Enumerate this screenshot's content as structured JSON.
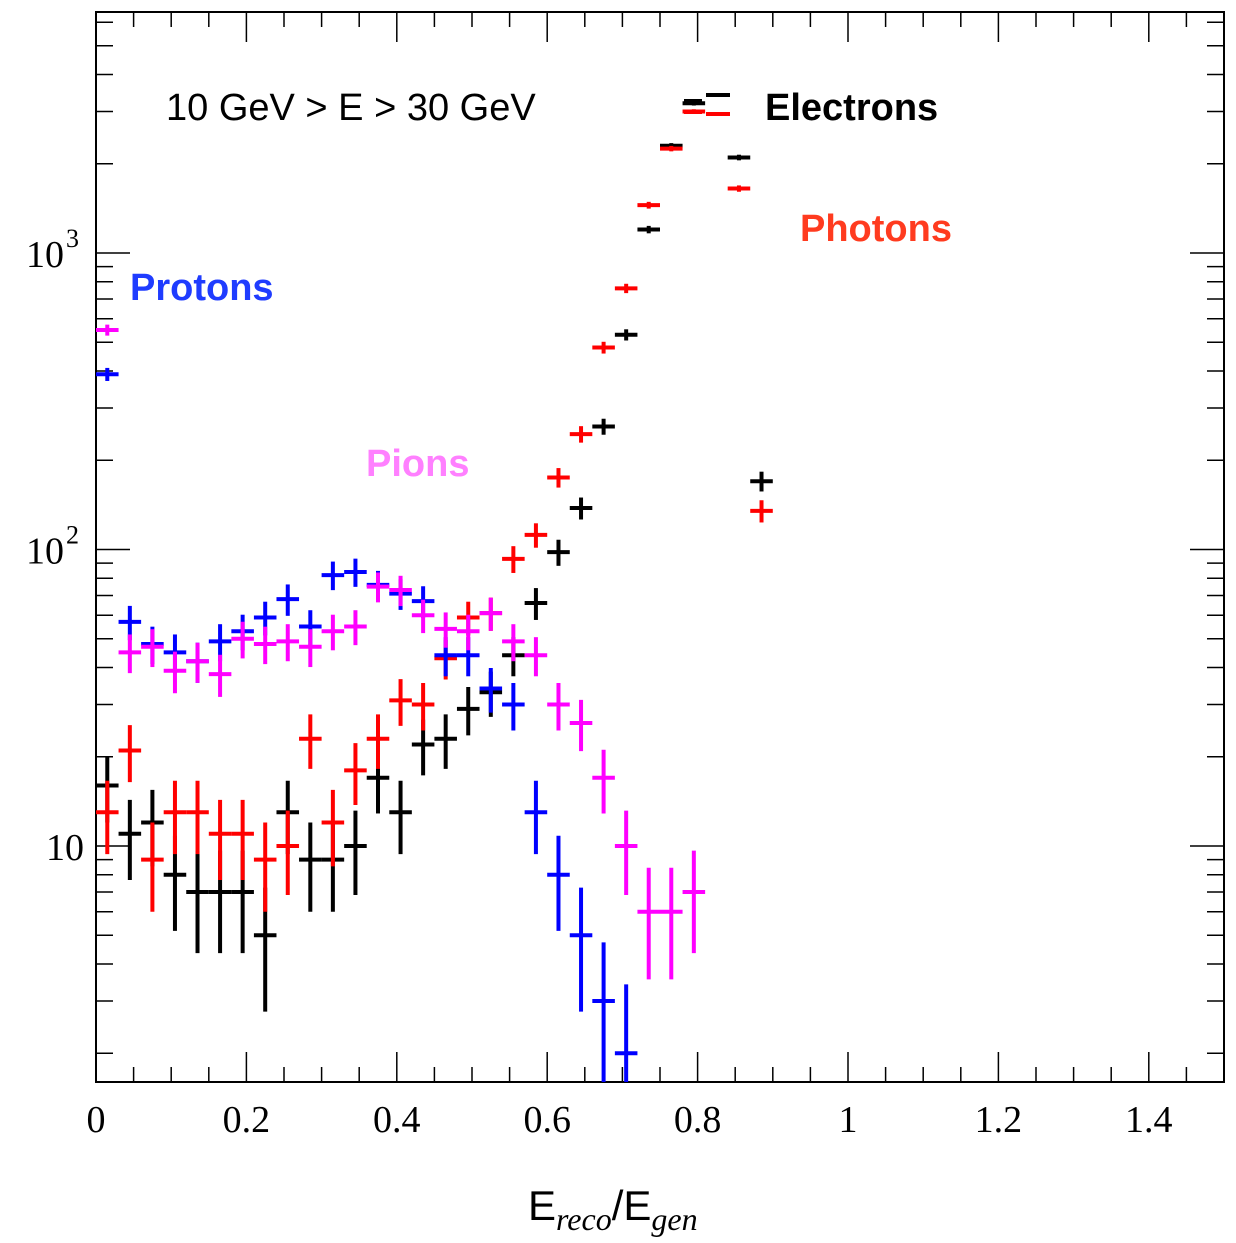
{
  "chart_data": {
    "type": "scatter",
    "log_y": true,
    "xlim": [
      0,
      1.5
    ],
    "ylim": [
      1.6,
      6500
    ],
    "x_ticks": [
      0,
      0.2,
      0.4,
      0.6,
      0.8,
      1,
      1.2,
      1.4
    ],
    "x_tick_labels": [
      "0",
      "0.2",
      "0.4",
      "0.6",
      "0.8",
      "1",
      "1.2",
      "1.4"
    ],
    "y_ticks": [
      10,
      100,
      1000
    ],
    "y_tick_labels": [
      "10",
      "10",
      "10"
    ],
    "y_tick_exponents": [
      "",
      "2",
      "3"
    ],
    "xlabel": {
      "base1": "E",
      "sub1": "reco",
      "sep": "/E",
      "sub2": "gen"
    },
    "ylabel": "",
    "grid": false,
    "annotation": "10 GeV > E > 30 GeV",
    "series": [
      {
        "name": "Electrons",
        "color": "#000000",
        "x": [
          0.015,
          0.045,
          0.075,
          0.105,
          0.135,
          0.165,
          0.195,
          0.225,
          0.255,
          0.285,
          0.315,
          0.345,
          0.375,
          0.405,
          0.435,
          0.465,
          0.495,
          0.525,
          0.555,
          0.585,
          0.615,
          0.645,
          0.675,
          0.705,
          0.735,
          0.765,
          0.795,
          0.855,
          0.885
        ],
        "y": [
          16,
          11,
          12,
          8,
          7,
          7,
          7,
          5,
          13,
          9,
          9,
          10,
          17,
          13,
          22,
          23,
          29,
          33,
          44,
          66,
          98,
          138,
          260,
          530,
          1200,
          2300,
          3200,
          2100,
          170
        ]
      },
      {
        "name": "Photons",
        "color": "#ff0000",
        "x": [
          0.015,
          0.045,
          0.075,
          0.105,
          0.135,
          0.165,
          0.195,
          0.225,
          0.255,
          0.285,
          0.315,
          0.345,
          0.375,
          0.405,
          0.435,
          0.465,
          0.495,
          0.525,
          0.555,
          0.585,
          0.615,
          0.645,
          0.675,
          0.705,
          0.735,
          0.765,
          0.795,
          0.855,
          0.885
        ],
        "y": [
          13,
          21,
          9,
          13,
          13,
          11,
          11,
          9,
          10,
          23,
          12,
          18,
          23,
          31,
          30,
          43,
          59,
          61,
          93,
          112,
          175,
          245,
          480,
          760,
          1450,
          2250,
          3000,
          1650,
          135
        ]
      },
      {
        "name": "Protons",
        "color": "#0000ff",
        "x": [
          0.015,
          0.045,
          0.075,
          0.105,
          0.135,
          0.165,
          0.195,
          0.225,
          0.255,
          0.285,
          0.315,
          0.345,
          0.375,
          0.405,
          0.435,
          0.465,
          0.495,
          0.525,
          0.555,
          0.585,
          0.615,
          0.645,
          0.675,
          0.705
        ],
        "y": [
          390,
          57,
          48,
          45,
          42,
          49,
          53,
          59,
          68,
          55,
          82,
          84,
          76,
          71,
          67,
          44,
          44,
          34,
          30,
          13,
          8,
          5,
          3,
          2
        ]
      },
      {
        "name": "Pions",
        "color": "#ff00ff",
        "x": [
          0.015,
          0.045,
          0.075,
          0.105,
          0.135,
          0.165,
          0.195,
          0.225,
          0.255,
          0.285,
          0.315,
          0.345,
          0.375,
          0.405,
          0.435,
          0.465,
          0.495,
          0.525,
          0.555,
          0.585,
          0.615,
          0.645,
          0.675,
          0.705,
          0.735,
          0.765,
          0.795
        ],
        "y": [
          550,
          45,
          47,
          39,
          42,
          38,
          50,
          48,
          49,
          47,
          53,
          55,
          75,
          73,
          60,
          54,
          53,
          61,
          49,
          44,
          30,
          26,
          17,
          10,
          6,
          6,
          7
        ]
      }
    ],
    "legend_labels": [
      {
        "text": "Electrons",
        "color": "#000000",
        "position": "top-right"
      },
      {
        "text": "Photons",
        "color": "#ff3b1f"
      },
      {
        "text": "Protons",
        "color": "#1f3cff"
      },
      {
        "text": "Pions",
        "color": "#ff80ff"
      }
    ]
  }
}
